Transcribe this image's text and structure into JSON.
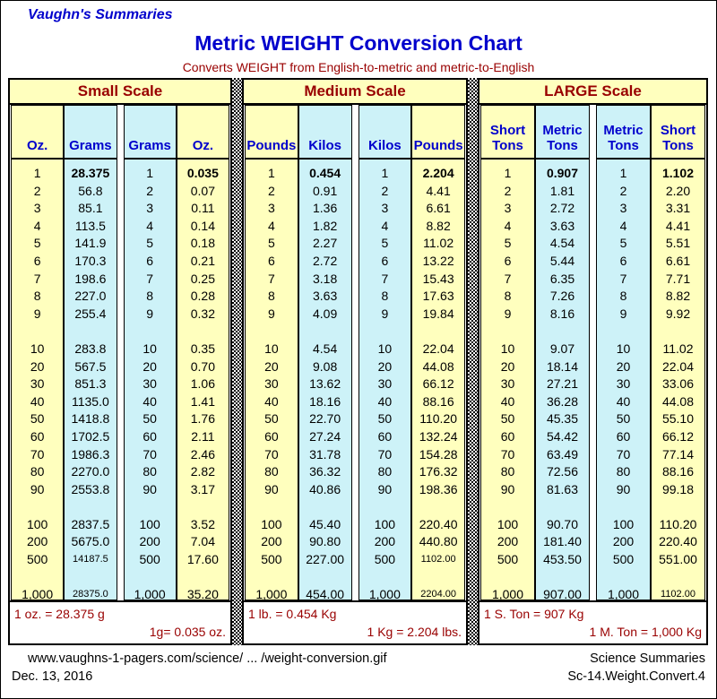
{
  "header": {
    "site_name": "Vaughn's Summaries",
    "title": "Metric WEIGHT Conversion Chart",
    "subtitle": "Converts WEIGHT from English-to-metric and metric-to-English"
  },
  "colors": {
    "accent_blue": "#0000CC",
    "dark_red": "#990000",
    "cell_yellow": "#FFFFBE",
    "cell_cyan": "#CDF2F8",
    "border_black": "#000000"
  },
  "chart_data": [
    {
      "type": "table",
      "title": "Small Scale",
      "headers": [
        {
          "label": "Oz.",
          "bg": "yellow"
        },
        {
          "label": "Grams",
          "bg": "cyan"
        },
        {
          "label": "Grams",
          "bg": "cyan"
        },
        {
          "label": "Oz.",
          "bg": "yellow"
        }
      ],
      "columns": [
        [
          "1",
          "2",
          "3",
          "4",
          "5",
          "6",
          "7",
          "8",
          "9",
          null,
          "10",
          "20",
          "30",
          "40",
          "50",
          "60",
          "70",
          "80",
          "90",
          null,
          "100",
          "200",
          "500",
          null,
          "1,000"
        ],
        [
          {
            "v": "28.375",
            "b": 1
          },
          "56.8",
          "85.1",
          "113.5",
          "141.9",
          "170.3",
          "198.6",
          "227.0",
          "255.4",
          null,
          "283.8",
          "567.5",
          "851.3",
          "1135.0",
          "1418.8",
          "1702.5",
          "1986.3",
          "2270.0",
          "2553.8",
          null,
          "2837.5",
          "5675.0",
          {
            "v": "14187.5",
            "s": 1
          },
          null,
          {
            "v": "28375.0",
            "s": 1
          }
        ],
        [
          "1",
          "2",
          "3",
          "4",
          "5",
          "6",
          "7",
          "8",
          "9",
          null,
          "10",
          "20",
          "30",
          "40",
          "50",
          "60",
          "70",
          "80",
          "90",
          null,
          "100",
          "200",
          "500",
          null,
          "1,000"
        ],
        [
          {
            "v": "0.035",
            "b": 1
          },
          "0.07",
          "0.11",
          "0.14",
          "0.18",
          "0.21",
          "0.25",
          "0.28",
          "0.32",
          null,
          "0.35",
          "0.70",
          "1.06",
          "1.41",
          "1.76",
          "2.11",
          "2.46",
          "2.82",
          "3.17",
          null,
          "3.52",
          "7.04",
          "17.60",
          null,
          "35.20"
        ]
      ],
      "notes": {
        "left": "1 oz. = 28.375 g",
        "right": "1g= 0.035 oz."
      }
    },
    {
      "type": "table",
      "title": "Medium Scale",
      "headers": [
        {
          "label": "Pounds",
          "bg": "yellow"
        },
        {
          "label": "Kilos",
          "bg": "cyan"
        },
        {
          "label": "Kilos",
          "bg": "cyan"
        },
        {
          "label": "Pounds",
          "bg": "yellow"
        }
      ],
      "columns": [
        [
          "1",
          "2",
          "3",
          "4",
          "5",
          "6",
          "7",
          "8",
          "9",
          null,
          "10",
          "20",
          "30",
          "40",
          "50",
          "60",
          "70",
          "80",
          "90",
          null,
          "100",
          "200",
          "500",
          null,
          "1,000"
        ],
        [
          {
            "v": "0.454",
            "b": 1
          },
          "0.91",
          "1.36",
          "1.82",
          "2.27",
          "2.72",
          "3.18",
          "3.63",
          "4.09",
          null,
          "4.54",
          "9.08",
          "13.62",
          "18.16",
          "22.70",
          "27.24",
          "31.78",
          "36.32",
          "40.86",
          null,
          "45.40",
          "90.80",
          "227.00",
          null,
          "454.00"
        ],
        [
          "1",
          "2",
          "3",
          "4",
          "5",
          "6",
          "7",
          "8",
          "9",
          null,
          "10",
          "20",
          "30",
          "40",
          "50",
          "60",
          "70",
          "80",
          "90",
          null,
          "100",
          "200",
          "500",
          null,
          "1,000"
        ],
        [
          {
            "v": "2.204",
            "b": 1
          },
          "4.41",
          "6.61",
          "8.82",
          "11.02",
          "13.22",
          "15.43",
          "17.63",
          "19.84",
          null,
          "22.04",
          "44.08",
          "66.12",
          "88.16",
          "110.20",
          "132.24",
          "154.28",
          "176.32",
          "198.36",
          null,
          "220.40",
          "440.80",
          {
            "v": "1102.00",
            "s": 1
          },
          null,
          {
            "v": "2204.00",
            "s": 1
          }
        ]
      ],
      "notes": {
        "left": "1 lb. = 0.454 Kg",
        "right": "1 Kg = 2.204 lbs."
      }
    },
    {
      "type": "table",
      "title": "LARGE Scale",
      "headers": [
        {
          "label": "Short\nTons",
          "bg": "yellow"
        },
        {
          "label": "Metric\nTons",
          "bg": "cyan"
        },
        {
          "label": "Metric\nTons",
          "bg": "cyan"
        },
        {
          "label": "Short\nTons",
          "bg": "yellow"
        }
      ],
      "columns": [
        [
          "1",
          "2",
          "3",
          "4",
          "5",
          "6",
          "7",
          "8",
          "9",
          null,
          "10",
          "20",
          "30",
          "40",
          "50",
          "60",
          "70",
          "80",
          "90",
          null,
          "100",
          "200",
          "500",
          null,
          "1,000"
        ],
        [
          {
            "v": "0.907",
            "b": 1
          },
          "1.81",
          "2.72",
          "3.63",
          "4.54",
          "5.44",
          "6.35",
          "7.26",
          "8.16",
          null,
          "9.07",
          "18.14",
          "27.21",
          "36.28",
          "45.35",
          "54.42",
          "63.49",
          "72.56",
          "81.63",
          null,
          "90.70",
          "181.40",
          "453.50",
          null,
          "907.00"
        ],
        [
          "1",
          "2",
          "3",
          "4",
          "5",
          "6",
          "7",
          "8",
          "9",
          null,
          "10",
          "20",
          "30",
          "40",
          "50",
          "60",
          "70",
          "80",
          "90",
          null,
          "100",
          "200",
          "500",
          null,
          "1,000"
        ],
        [
          {
            "v": "1.102",
            "b": 1
          },
          "2.20",
          "3.31",
          "4.41",
          "5.51",
          "6.61",
          "7.71",
          "8.82",
          "9.92",
          null,
          "11.02",
          "22.04",
          "33.06",
          "44.08",
          "55.10",
          "66.12",
          "77.14",
          "88.16",
          "99.18",
          null,
          "110.20",
          "220.40",
          "551.00",
          null,
          {
            "v": "1102.00",
            "s": 1
          }
        ]
      ],
      "notes": {
        "left": "1 S. Ton = 907 Kg",
        "right": "1 M. Ton = 1,000 Kg"
      }
    }
  ],
  "footer": {
    "url": "www.vaughns-1-pagers.com/science/ ... /weight-conversion.gif",
    "date": "Dec. 13, 2016",
    "org": "Science Summaries",
    "doc_id": "Sc-14.Weight.Convert.4"
  }
}
